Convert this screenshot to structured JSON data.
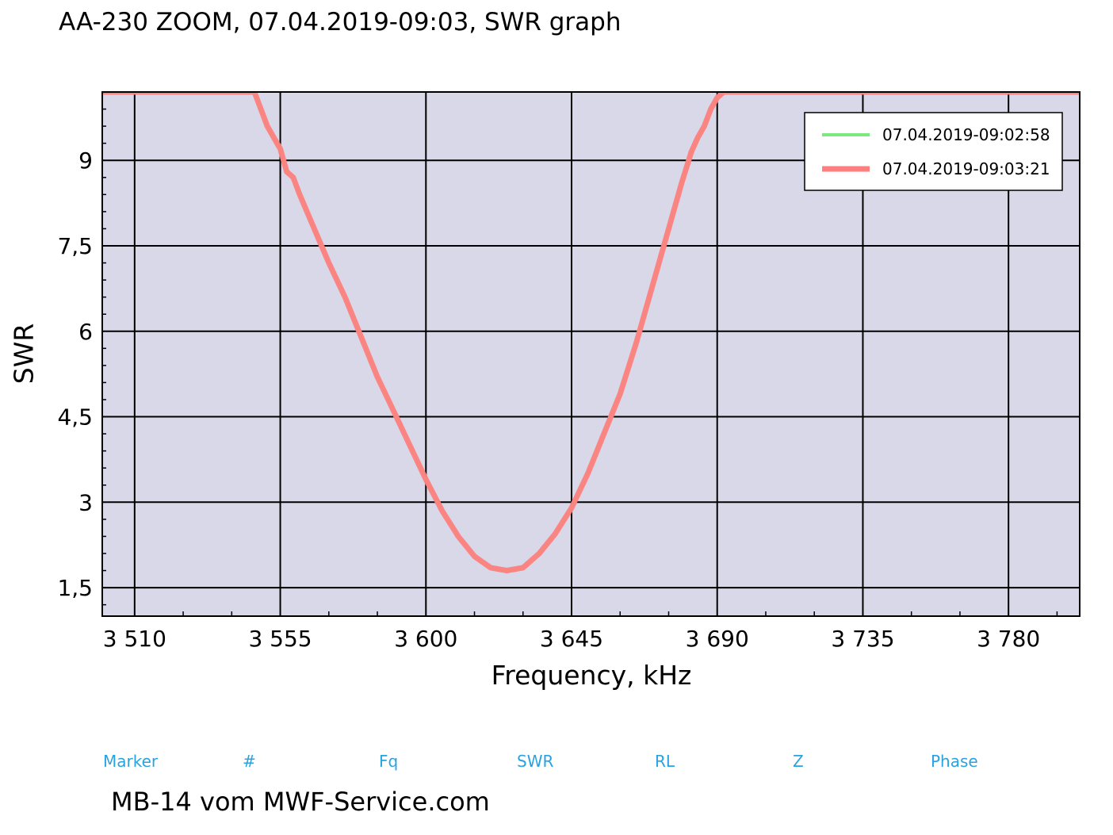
{
  "title": "AA-230 ZOOM, 07.04.2019-09:03, SWR graph",
  "footer": "MB-14 vom MWF-Service.com",
  "markers": {
    "marker": "Marker",
    "num": "#",
    "fq": "Fq",
    "swr": "SWR",
    "rl": "RL",
    "z": "Z",
    "phase": "Phase"
  },
  "colors": {
    "plot_background": "#d8d8e9",
    "grid": "#000000",
    "marker_text": "#29a3e0"
  },
  "chart_data": {
    "type": "line",
    "title": "AA-230 ZOOM, 07.04.2019-09:03, SWR graph",
    "xlabel": "Frequency, kHz",
    "ylabel": "SWR",
    "xlim": [
      3500,
      3802
    ],
    "ylim": [
      1.0,
      10.2
    ],
    "x_ticks": [
      3510,
      3555,
      3600,
      3645,
      3690,
      3735,
      3780
    ],
    "x_tick_labels": [
      "3 510",
      "3 555",
      "3 600",
      "3 645",
      "3 690",
      "3 735",
      "3 780"
    ],
    "y_ticks": [
      1.5,
      3,
      4.5,
      6,
      7.5,
      9
    ],
    "y_tick_labels": [
      "1,5",
      "3",
      "4,5",
      "6",
      "7,5",
      "9"
    ],
    "grid": true,
    "legend_position": "top-right",
    "series": [
      {
        "name": "07.04.2019-09:02:58",
        "color": "#7ce97c",
        "line_width": 4,
        "x": [
          3500,
          3547,
          3549,
          3551,
          3553,
          3555,
          3557,
          3559,
          3561,
          3564,
          3567,
          3570,
          3575,
          3580,
          3585,
          3590,
          3595,
          3600,
          3605,
          3610,
          3615,
          3620,
          3625,
          3630,
          3635,
          3640,
          3645,
          3650,
          3655,
          3660,
          3665,
          3670,
          3675,
          3679,
          3682,
          3684,
          3686,
          3688,
          3690,
          3692,
          3802
        ],
        "y": [
          10.2,
          10.2,
          9.9,
          9.6,
          9.4,
          9.2,
          8.8,
          8.7,
          8.4,
          8.0,
          7.6,
          7.2,
          6.6,
          5.9,
          5.2,
          4.6,
          4.0,
          3.4,
          2.85,
          2.4,
          2.05,
          1.85,
          1.8,
          1.85,
          2.1,
          2.45,
          2.9,
          3.5,
          4.2,
          4.9,
          5.8,
          6.8,
          7.8,
          8.6,
          9.15,
          9.4,
          9.6,
          9.9,
          10.1,
          10.2,
          10.2
        ]
      },
      {
        "name": "07.04.2019-09:03:21",
        "color": "#ff7f7f",
        "line_width": 7,
        "x": [
          3500,
          3547,
          3549,
          3551,
          3553,
          3555,
          3557,
          3559,
          3561,
          3564,
          3567,
          3570,
          3575,
          3580,
          3585,
          3590,
          3595,
          3600,
          3605,
          3610,
          3615,
          3620,
          3625,
          3630,
          3635,
          3640,
          3645,
          3650,
          3655,
          3660,
          3665,
          3670,
          3675,
          3679,
          3682,
          3684,
          3686,
          3688,
          3690,
          3692,
          3802
        ],
        "y": [
          10.2,
          10.2,
          9.9,
          9.6,
          9.4,
          9.2,
          8.8,
          8.7,
          8.4,
          8.0,
          7.6,
          7.2,
          6.6,
          5.9,
          5.2,
          4.6,
          4.0,
          3.4,
          2.85,
          2.4,
          2.05,
          1.85,
          1.8,
          1.85,
          2.1,
          2.45,
          2.9,
          3.5,
          4.2,
          4.9,
          5.8,
          6.8,
          7.8,
          8.6,
          9.15,
          9.4,
          9.6,
          9.9,
          10.1,
          10.2,
          10.2
        ]
      }
    ]
  }
}
